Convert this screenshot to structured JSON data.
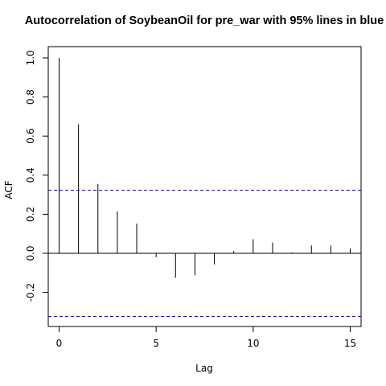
{
  "chart_data": {
    "type": "bar",
    "title": "Autocorrelation of SoybeanOil for pre_war  with 95% lines in blue",
    "xlabel": "Lag",
    "ylabel": "ACF",
    "xlim": [
      0,
      15
    ],
    "ylim": [
      -0.32,
      1.0
    ],
    "x_ticks": [
      0,
      5,
      10,
      15
    ],
    "y_ticks": [
      -0.2,
      0.0,
      0.2,
      0.4,
      0.6,
      0.8,
      1.0
    ],
    "x_tick_labels": [
      "0",
      "5",
      "10",
      "15"
    ],
    "y_tick_labels": [
      "-0.2",
      "0.0",
      "0.2",
      "0.4",
      "0.6",
      "0.8",
      "1.0"
    ],
    "lags": [
      0,
      1,
      2,
      3,
      4,
      5,
      6,
      7,
      8,
      9,
      10,
      11,
      12,
      13,
      14,
      15
    ],
    "acf": [
      1.0,
      0.66,
      0.355,
      0.215,
      0.152,
      -0.02,
      -0.125,
      -0.112,
      -0.057,
      0.012,
      0.072,
      0.055,
      0.005,
      0.04,
      0.04,
      0.025
    ],
    "confidence_bounds": [
      0.323,
      -0.323
    ],
    "zero_line": 0,
    "colors": {
      "bars": "#000000",
      "bounds": "#0000ff"
    }
  }
}
